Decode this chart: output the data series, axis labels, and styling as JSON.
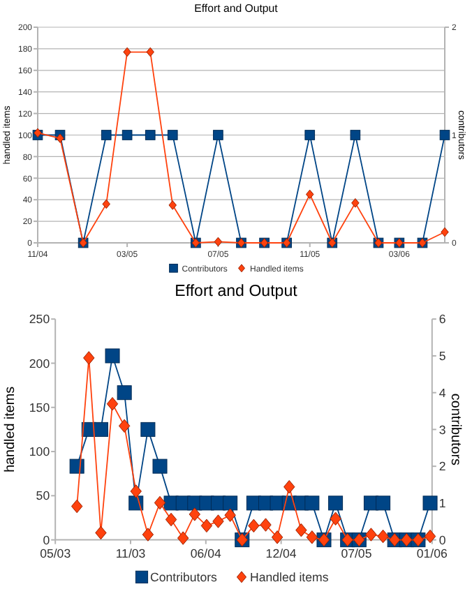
{
  "chart_data": [
    {
      "type": "line",
      "title": "Effort and Output",
      "ylabel": "handled items",
      "y2label": "contributors",
      "x": [
        "2004-11",
        "2004-12",
        "2005-01",
        "2005-02",
        "2005-03",
        "2005-04",
        "2005-05",
        "2005-06",
        "2005-07",
        "2005-08",
        "2005-09",
        "2005-10",
        "2005-11",
        "2005-12",
        "2006-01",
        "2006-02",
        "2006-03",
        "2006-04",
        "2006-05"
      ],
      "series": [
        {
          "name": "Contributors",
          "color": "#004586",
          "marker": "square",
          "axis": "y2",
          "values": [
            1,
            1,
            0,
            1,
            1,
            1,
            1,
            0,
            1,
            0,
            0,
            0,
            1,
            0,
            1,
            0,
            0,
            0,
            1
          ]
        },
        {
          "name": "Handled items",
          "color": "#ff420e",
          "marker": "diamond",
          "values": [
            102,
            97,
            0,
            36,
            177,
            177,
            35,
            0,
            1,
            0,
            0,
            0,
            45,
            0,
            37,
            0,
            0,
            0,
            10
          ]
        }
      ],
      "xlim": [
        "2004-11",
        "2006-05"
      ],
      "xticks": [
        {
          "value": "2004-11",
          "label": "11/04"
        },
        {
          "value": "2005-03",
          "label": "03/05"
        },
        {
          "value": "2005-07",
          "label": "07/05"
        },
        {
          "value": "2005-11",
          "label": "11/05"
        },
        {
          "value": "2006-03",
          "label": "03/06"
        }
      ],
      "ylim": [
        0,
        200
      ],
      "yticks": [
        0,
        20,
        40,
        60,
        80,
        100,
        120,
        140,
        160,
        180,
        200
      ],
      "y2lim": [
        0,
        2
      ],
      "y2ticks": [
        0,
        1,
        2
      ],
      "grid": "y",
      "legend": "bottom"
    },
    {
      "type": "line",
      "title": "Effort and Output",
      "ylabel": "handled items",
      "y2label": "contributors",
      "x": [
        "2003-07-10",
        "2003-08-10",
        "2003-09-10",
        "2003-10-10",
        "2003-11-10",
        "2003-12-10",
        "2004-01-10",
        "2004-02-10",
        "2004-03-10",
        "2004-04-10",
        "2004-05-10",
        "2004-06-10",
        "2004-07-10",
        "2004-08-10",
        "2004-09-10",
        "2004-10-10",
        "2004-11-10",
        "2004-12-10",
        "2005-01-10",
        "2005-02-10",
        "2005-03-10",
        "2005-04-10",
        "2005-05-10",
        "2005-06-10",
        "2005-07-10",
        "2005-08-10",
        "2005-09-10",
        "2005-10-10",
        "2005-11-10",
        "2005-12-10",
        "2006-01-10"
      ],
      "series": [
        {
          "name": "Contributors",
          "color": "#004586",
          "marker": "square",
          "axis": "y2",
          "values": [
            2,
            3,
            3,
            5,
            4,
            1,
            3,
            2,
            1,
            1,
            1,
            1,
            1,
            1,
            0,
            1,
            1,
            1,
            1,
            1,
            1,
            0,
            1,
            0,
            0,
            1,
            1,
            0,
            0,
            0,
            1
          ]
        },
        {
          "name": "Handled items",
          "color": "#ff420e",
          "marker": "diamond",
          "values": [
            38,
            206,
            8,
            154,
            129,
            55,
            6,
            42,
            23,
            2,
            29,
            16,
            21,
            28,
            0,
            16,
            17,
            3,
            60,
            11,
            3,
            0,
            24,
            0,
            0,
            6,
            4,
            0,
            0,
            0,
            4
          ]
        }
      ],
      "xlim": [
        "2003-05-15",
        "2006-01-15"
      ],
      "xticks": [
        {
          "value": "2003-05-15",
          "label": "05/03"
        },
        {
          "value": "2003-11-26",
          "label": "11/03"
        },
        {
          "value": "2004-06-08",
          "label": "06/04"
        },
        {
          "value": "2004-12-20",
          "label": "12/04"
        },
        {
          "value": "2005-07-03",
          "label": "07/05"
        },
        {
          "value": "2006-01-15",
          "label": "01/06"
        }
      ],
      "ylim": [
        0,
        250
      ],
      "yticks": [
        0,
        50,
        100,
        150,
        200,
        250
      ],
      "y2lim": [
        0,
        6
      ],
      "y2ticks": [
        0,
        1,
        2,
        3,
        4,
        5,
        6
      ],
      "legend": "bottom"
    }
  ]
}
